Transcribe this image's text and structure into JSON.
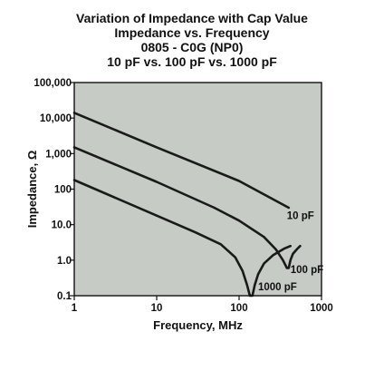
{
  "chart_data": {
    "type": "line",
    "title": [
      "Variation of Impedance with Cap Value",
      "Impedance vs. Frequency",
      "0805 - C0G (NP0)",
      "10 pF vs. 100 pF vs. 1000 pF"
    ],
    "xlabel": "Frequency, MHz",
    "ylabel": "Impedance, Ω",
    "x_scale": "log",
    "y_scale": "log",
    "xlim": [
      1,
      1000
    ],
    "ylim": [
      0.1,
      100000
    ],
    "x_ticks": [
      "1",
      "10",
      "100",
      "1000"
    ],
    "y_ticks": [
      "0.1",
      "1.0",
      "10.0",
      "100",
      "1,000",
      "10,000",
      "100,000"
    ],
    "grid": false,
    "colors": {
      "plot_background": "#c6cbc6",
      "line": "#1a1a1a",
      "axis": "#111111"
    },
    "series": [
      {
        "name": "10 pF",
        "x": [
          1,
          10,
          100,
          400
        ],
        "y": [
          14000,
          1500,
          170,
          30
        ]
      },
      {
        "name": "100 pF",
        "x": [
          1,
          10,
          50,
          100,
          200,
          280,
          340,
          380,
          400,
          420,
          450,
          500,
          550
        ],
        "y": [
          1500,
          160,
          30,
          13,
          4.5,
          2.0,
          1.0,
          0.6,
          0.6,
          1.0,
          1.5,
          2.0,
          2.5
        ]
      },
      {
        "name": "1000 pF",
        "x": [
          1,
          10,
          30,
          60,
          90,
          110,
          125,
          135,
          145,
          155,
          170,
          200,
          260,
          350,
          420
        ],
        "y": [
          180,
          18,
          6,
          2.8,
          1.2,
          0.5,
          0.2,
          0.1,
          0.1,
          0.2,
          0.4,
          0.8,
          1.4,
          2.1,
          2.5
        ]
      }
    ],
    "annotations": [
      {
        "text": "10 pF",
        "x": 380,
        "y": 18
      },
      {
        "text": "100 pF",
        "x": 420,
        "y": 0.55
      },
      {
        "text": "1000 pF",
        "x": 170,
        "y": 0.18
      }
    ]
  }
}
